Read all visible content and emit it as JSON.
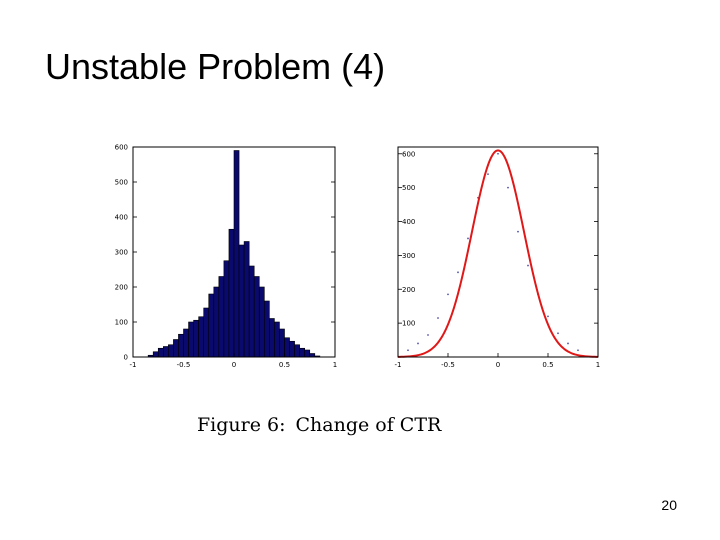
{
  "slide": {
    "title": "Unstable Problem (4)",
    "page_number": "20"
  },
  "figure": {
    "caption_label": "Figure 6:",
    "caption_text": "Change of CTR"
  },
  "colors": {
    "bar_fill": "#0a0a6e",
    "bar_edge": "#000000",
    "curve": "#e01818",
    "points": "#5555aa"
  },
  "chart_data": [
    {
      "type": "bar",
      "title": "",
      "xlabel": "",
      "ylabel": "",
      "xlim": [
        -1,
        1
      ],
      "ylim": [
        0,
        600
      ],
      "x_ticks": [
        "-1",
        "-0.5",
        "0",
        "0.5",
        "1"
      ],
      "y_ticks": [
        "0",
        "100",
        "200",
        "300",
        "400",
        "500",
        "600"
      ],
      "bin_centers": [
        -0.825,
        -0.775,
        -0.725,
        -0.675,
        -0.625,
        -0.575,
        -0.525,
        -0.475,
        -0.425,
        -0.375,
        -0.325,
        -0.275,
        -0.225,
        -0.175,
        -0.125,
        -0.075,
        -0.025,
        0.025,
        0.075,
        0.125,
        0.175,
        0.225,
        0.275,
        0.325,
        0.375,
        0.425,
        0.475,
        0.525,
        0.575,
        0.625,
        0.675,
        0.725,
        0.775,
        0.825
      ],
      "values": [
        5,
        15,
        25,
        30,
        35,
        50,
        65,
        80,
        100,
        105,
        115,
        140,
        180,
        200,
        230,
        275,
        365,
        590,
        320,
        330,
        260,
        230,
        200,
        160,
        110,
        100,
        80,
        55,
        45,
        35,
        25,
        20,
        10,
        3
      ]
    },
    {
      "type": "line",
      "title": "",
      "xlabel": "",
      "ylabel": "",
      "xlim": [
        -1,
        1
      ],
      "ylim": [
        0,
        620
      ],
      "x_ticks": [
        "-1",
        "-0.5",
        "0",
        "0.5",
        "1"
      ],
      "y_ticks": [
        "100",
        "200",
        "300",
        "400",
        "500",
        "600"
      ],
      "fit_curve": {
        "amplitude": 610,
        "mean": 0,
        "sigma": 0.26
      },
      "points": {
        "x": [
          -0.9,
          -0.8,
          -0.7,
          -0.6,
          -0.5,
          -0.4,
          -0.3,
          -0.2,
          -0.1,
          0.0,
          0.1,
          0.2,
          0.3,
          0.4,
          0.5,
          0.6,
          0.7,
          0.8
        ],
        "y": [
          20,
          40,
          65,
          115,
          185,
          250,
          350,
          470,
          540,
          600,
          500,
          370,
          270,
          185,
          120,
          70,
          40,
          20
        ]
      }
    }
  ]
}
